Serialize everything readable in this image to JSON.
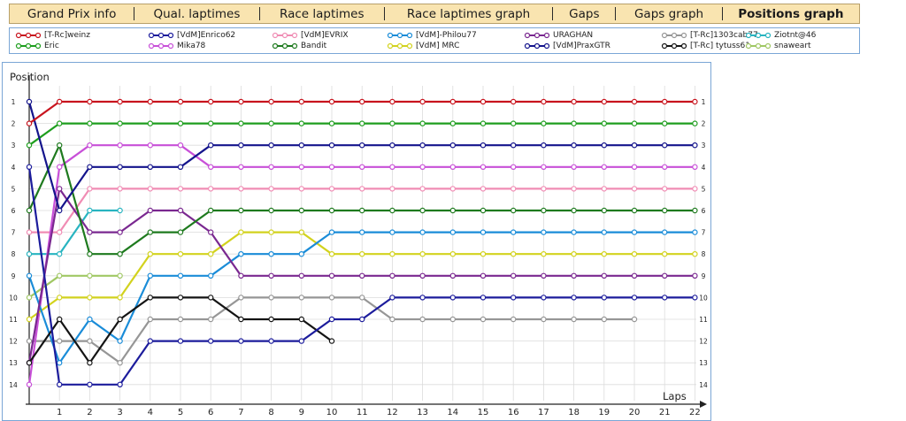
{
  "tabs": [
    {
      "label": "Grand Prix info",
      "active": false
    },
    {
      "label": "Qual. laptimes",
      "active": false
    },
    {
      "label": "Race laptimes",
      "active": false
    },
    {
      "label": "Race laptimes graph",
      "active": false
    },
    {
      "label": "Gaps",
      "active": false
    },
    {
      "label": "Gaps graph",
      "active": false
    },
    {
      "label": "Positions graph",
      "active": true
    }
  ],
  "chart_data": {
    "type": "line",
    "title": "",
    "xlabel": "Laps",
    "ylabel": "Position",
    "xlim": [
      0,
      22.5
    ],
    "ylim": [
      0.5,
      14.5
    ],
    "y_inverted": true,
    "x_ticks": [
      1,
      2,
      3,
      4,
      5,
      6,
      7,
      8,
      9,
      10,
      11,
      12,
      13,
      14,
      15,
      16,
      17,
      18,
      19,
      20,
      21,
      22
    ],
    "y_ticks": [
      1,
      2,
      3,
      4,
      5,
      6,
      7,
      8,
      9,
      10,
      11,
      12,
      13,
      14
    ],
    "grid": true,
    "legend_position": "top",
    "series": [
      {
        "name": "[T-Rc]weinz",
        "color": "#c8141e",
        "x": [
          0,
          1,
          2,
          3,
          4,
          5,
          6,
          7,
          8,
          9,
          10,
          11,
          12,
          13,
          14,
          15,
          16,
          17,
          18,
          19,
          20,
          21,
          22
        ],
        "y": [
          2,
          1,
          1,
          1,
          1,
          1,
          1,
          1,
          1,
          1,
          1,
          1,
          1,
          1,
          1,
          1,
          1,
          1,
          1,
          1,
          1,
          1,
          1
        ]
      },
      {
        "name": "[VdM]Enrico62",
        "color": "#1c1c9c",
        "x": [
          0,
          1,
          2,
          3,
          4,
          5,
          6,
          7,
          8,
          9,
          10,
          11,
          12,
          13,
          14,
          15,
          16,
          17,
          18,
          19,
          20,
          21,
          22
        ],
        "y": [
          4,
          14,
          14,
          14,
          12,
          12,
          12,
          12,
          12,
          12,
          11,
          11,
          10,
          10,
          10,
          10,
          10,
          10,
          10,
          10,
          10,
          10,
          10
        ]
      },
      {
        "name": "[VdM]EVRIX",
        "color": "#f08cb4",
        "x": [
          0,
          1,
          2,
          3,
          4,
          5,
          6,
          7,
          8,
          9,
          10,
          11,
          12,
          13,
          14,
          15,
          16,
          17,
          18,
          19,
          20,
          21,
          22
        ],
        "y": [
          7,
          7,
          5,
          5,
          5,
          5,
          5,
          5,
          5,
          5,
          5,
          5,
          5,
          5,
          5,
          5,
          5,
          5,
          5,
          5,
          5,
          5,
          5
        ]
      },
      {
        "name": "[VdM]-Philou77",
        "color": "#1a8cd8",
        "x": [
          0,
          1,
          2,
          3,
          4,
          5,
          6,
          7,
          8,
          9,
          10,
          11,
          12,
          13,
          14,
          15,
          16,
          17,
          18,
          19,
          20,
          21,
          22
        ],
        "y": [
          9,
          13,
          11,
          12,
          9,
          9,
          9,
          8,
          8,
          8,
          7,
          7,
          7,
          7,
          7,
          7,
          7,
          7,
          7,
          7,
          7,
          7,
          7
        ]
      },
      {
        "name": "URAGHAN",
        "color": "#7a2890",
        "x": [
          0,
          1,
          2,
          3,
          4,
          5,
          6,
          7,
          8,
          9,
          10,
          11,
          12,
          13,
          14,
          15,
          16,
          17,
          18,
          19,
          20,
          21,
          22
        ],
        "y": [
          13,
          5,
          7,
          7,
          6,
          6,
          7,
          9,
          9,
          9,
          9,
          9,
          9,
          9,
          9,
          9,
          9,
          9,
          9,
          9,
          9,
          9,
          9
        ]
      },
      {
        "name": "[T-Rc]1303cab77",
        "color": "#969696",
        "x": [
          0,
          1,
          2,
          3,
          4,
          5,
          6,
          7,
          8,
          9,
          10,
          11,
          12,
          13,
          14,
          15,
          16,
          17,
          18,
          19,
          20
        ],
        "y": [
          12,
          12,
          12,
          13,
          11,
          11,
          11,
          10,
          10,
          10,
          10,
          10,
          11,
          11,
          11,
          11,
          11,
          11,
          11,
          11,
          11
        ]
      },
      {
        "name": "Ziotnt@46",
        "color": "#28b4c0",
        "x": [
          0,
          1,
          2,
          3
        ],
        "y": [
          8,
          8,
          6,
          6
        ]
      },
      {
        "name": "Eric",
        "color": "#1e9e1e",
        "x": [
          0,
          1,
          2,
          3,
          4,
          5,
          6,
          7,
          8,
          9,
          10,
          11,
          12,
          13,
          14,
          15,
          16,
          17,
          18,
          19,
          20,
          21,
          22
        ],
        "y": [
          3,
          2,
          2,
          2,
          2,
          2,
          2,
          2,
          2,
          2,
          2,
          2,
          2,
          2,
          2,
          2,
          2,
          2,
          2,
          2,
          2,
          2,
          2
        ]
      },
      {
        "name": "Mika78",
        "color": "#c850d8",
        "x": [
          0,
          1,
          2,
          3,
          4,
          5,
          6,
          7,
          8,
          9,
          10,
          11,
          12,
          13,
          14,
          15,
          16,
          17,
          18,
          19,
          20,
          21,
          22
        ],
        "y": [
          14,
          4,
          3,
          3,
          3,
          3,
          4,
          4,
          4,
          4,
          4,
          4,
          4,
          4,
          4,
          4,
          4,
          4,
          4,
          4,
          4,
          4,
          4
        ]
      },
      {
        "name": "Bandit",
        "color": "#1e7a1e",
        "x": [
          0,
          1,
          2,
          3,
          4,
          5,
          6,
          7,
          8,
          9,
          10,
          11,
          12,
          13,
          14,
          15,
          16,
          17,
          18,
          19,
          20,
          21,
          22
        ],
        "y": [
          6,
          3,
          8,
          8,
          7,
          7,
          6,
          6,
          6,
          6,
          6,
          6,
          6,
          6,
          6,
          6,
          6,
          6,
          6,
          6,
          6,
          6,
          6
        ]
      },
      {
        "name": "[VdM] MRC",
        "color": "#d2d21e",
        "x": [
          0,
          1,
          2,
          3,
          4,
          5,
          6,
          7,
          8,
          9,
          10,
          11,
          12,
          13,
          14,
          15,
          16,
          17,
          18,
          19,
          20,
          21,
          22
        ],
        "y": [
          11,
          10,
          10,
          10,
          8,
          8,
          8,
          7,
          7,
          7,
          8,
          8,
          8,
          8,
          8,
          8,
          8,
          8,
          8,
          8,
          8,
          8,
          8
        ]
      },
      {
        "name": "[VdM]PraxGTR",
        "color": "#14148c",
        "x": [
          0,
          1,
          2,
          3,
          4,
          5,
          6,
          7,
          8,
          9,
          10,
          11,
          12,
          13,
          14,
          15,
          16,
          17,
          18,
          19,
          20,
          21,
          22
        ],
        "y": [
          1,
          6,
          4,
          4,
          4,
          4,
          3,
          3,
          3,
          3,
          3,
          3,
          3,
          3,
          3,
          3,
          3,
          3,
          3,
          3,
          3,
          3,
          3
        ]
      },
      {
        "name": "[T-Rc] tytuss61",
        "color": "#141414",
        "x": [
          0,
          1,
          2,
          3,
          4,
          5,
          6,
          7,
          8,
          9,
          10
        ],
        "y": [
          13,
          11,
          13,
          11,
          10,
          10,
          10,
          11,
          11,
          11,
          12
        ]
      },
      {
        "name": "snaweart",
        "color": "#a0c864",
        "x": [
          0,
          1,
          2,
          3
        ],
        "y": [
          10,
          9,
          9,
          9
        ]
      }
    ]
  }
}
